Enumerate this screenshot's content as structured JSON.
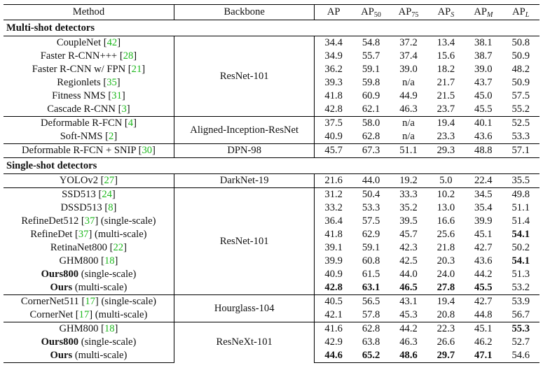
{
  "headers": {
    "method": "Method",
    "backbone": "Backbone",
    "metrics": [
      {
        "base": "AP",
        "sub": ""
      },
      {
        "base": "AP",
        "sub": "50"
      },
      {
        "base": "AP",
        "sub": "75"
      },
      {
        "base": "AP",
        "sub": "S"
      },
      {
        "base": "AP",
        "sub": "M"
      },
      {
        "base": "AP",
        "sub": "L"
      }
    ]
  },
  "sections": [
    {
      "title": "Multi-shot detectors",
      "groups": [
        {
          "backbone": "ResNet-101",
          "rows": [
            {
              "name": "CoupleNet",
              "ref": "42",
              "suffix": "",
              "bold_name": false,
              "values": [
                "34.4",
                "54.8",
                "37.2",
                "13.4",
                "38.1",
                "50.8"
              ],
              "bold": [
                false,
                false,
                false,
                false,
                false,
                false
              ]
            },
            {
              "name": "Faster R-CNN+++",
              "ref": "28",
              "suffix": "",
              "bold_name": false,
              "values": [
                "34.9",
                "55.7",
                "37.4",
                "15.6",
                "38.7",
                "50.9"
              ],
              "bold": [
                false,
                false,
                false,
                false,
                false,
                false
              ]
            },
            {
              "name": "Faster R-CNN w/ FPN",
              "ref": "21",
              "suffix": "",
              "bold_name": false,
              "values": [
                "36.2",
                "59.1",
                "39.0",
                "18.2",
                "39.0",
                "48.2"
              ],
              "bold": [
                false,
                false,
                false,
                false,
                false,
                false
              ]
            },
            {
              "name": "Regionlets",
              "ref": "35",
              "suffix": "",
              "bold_name": false,
              "values": [
                "39.3",
                "59.8",
                "n/a",
                "21.7",
                "43.7",
                "50.9"
              ],
              "bold": [
                false,
                false,
                false,
                false,
                false,
                false
              ]
            },
            {
              "name": "Fitness NMS",
              "ref": "31",
              "suffix": "",
              "bold_name": false,
              "values": [
                "41.8",
                "60.9",
                "44.9",
                "21.5",
                "45.0",
                "57.5"
              ],
              "bold": [
                false,
                false,
                false,
                false,
                false,
                false
              ]
            },
            {
              "name": "Cascade R-CNN",
              "ref": "3",
              "suffix": "",
              "bold_name": false,
              "values": [
                "42.8",
                "62.1",
                "46.3",
                "23.7",
                "45.5",
                "55.2"
              ],
              "bold": [
                false,
                false,
                false,
                false,
                false,
                false
              ]
            }
          ]
        },
        {
          "backbone": "Aligned-Inception-ResNet",
          "rows": [
            {
              "name": "Deformable R-FCN",
              "ref": "4",
              "suffix": "",
              "bold_name": false,
              "values": [
                "37.5",
                "58.0",
                "n/a",
                "19.4",
                "40.1",
                "52.5"
              ],
              "bold": [
                false,
                false,
                false,
                false,
                false,
                false
              ]
            },
            {
              "name": "Soft-NMS",
              "ref": "2",
              "suffix": "",
              "bold_name": false,
              "values": [
                "40.9",
                "62.8",
                "n/a",
                "23.3",
                "43.6",
                "53.3"
              ],
              "bold": [
                false,
                false,
                false,
                false,
                false,
                false
              ]
            }
          ]
        },
        {
          "backbone": "DPN-98",
          "rows": [
            {
              "name": "Deformable R-FCN + SNIP",
              "ref": "30",
              "suffix": "",
              "bold_name": false,
              "values": [
                "45.7",
                "67.3",
                "51.1",
                "29.3",
                "48.8",
                "57.1"
              ],
              "bold": [
                false,
                false,
                false,
                false,
                false,
                false
              ]
            }
          ]
        }
      ]
    },
    {
      "title": "Single-shot detectors",
      "groups": [
        {
          "backbone": "DarkNet-19",
          "rows": [
            {
              "name": "YOLOv2",
              "ref": "27",
              "suffix": "",
              "bold_name": false,
              "values": [
                "21.6",
                "44.0",
                "19.2",
                "5.0",
                "22.4",
                "35.5"
              ],
              "bold": [
                false,
                false,
                false,
                false,
                false,
                false
              ]
            }
          ]
        },
        {
          "backbone": "ResNet-101",
          "rows": [
            {
              "name": "SSD513",
              "ref": "24",
              "suffix": "",
              "bold_name": false,
              "values": [
                "31.2",
                "50.4",
                "33.3",
                "10.2",
                "34.5",
                "49.8"
              ],
              "bold": [
                false,
                false,
                false,
                false,
                false,
                false
              ]
            },
            {
              "name": "DSSD513",
              "ref": "8",
              "suffix": "",
              "bold_name": false,
              "values": [
                "33.2",
                "53.3",
                "35.2",
                "13.0",
                "35.4",
                "51.1"
              ],
              "bold": [
                false,
                false,
                false,
                false,
                false,
                false
              ]
            },
            {
              "name": "RefineDet512",
              "ref": "37",
              "suffix": "(single-scale)",
              "bold_name": false,
              "values": [
                "36.4",
                "57.5",
                "39.5",
                "16.6",
                "39.9",
                "51.4"
              ],
              "bold": [
                false,
                false,
                false,
                false,
                false,
                false
              ]
            },
            {
              "name": "RefineDet",
              "ref": "37",
              "suffix": "(multi-scale)",
              "bold_name": false,
              "values": [
                "41.8",
                "62.9",
                "45.7",
                "25.6",
                "45.1",
                "54.1"
              ],
              "bold": [
                false,
                false,
                false,
                false,
                false,
                true
              ]
            },
            {
              "name": "RetinaNet800",
              "ref": "22",
              "suffix": "",
              "bold_name": false,
              "values": [
                "39.1",
                "59.1",
                "42.3",
                "21.8",
                "42.7",
                "50.2"
              ],
              "bold": [
                false,
                false,
                false,
                false,
                false,
                false
              ]
            },
            {
              "name": "GHM800",
              "ref": "18",
              "suffix": "",
              "bold_name": false,
              "values": [
                "39.9",
                "60.8",
                "42.5",
                "20.3",
                "43.6",
                "54.1"
              ],
              "bold": [
                false,
                false,
                false,
                false,
                false,
                true
              ]
            },
            {
              "name": "Ours800",
              "ref": "",
              "suffix": "(single-scale)",
              "bold_name": true,
              "values": [
                "40.9",
                "61.5",
                "44.0",
                "24.0",
                "44.2",
                "51.3"
              ],
              "bold": [
                false,
                false,
                false,
                false,
                false,
                false
              ]
            },
            {
              "name": "Ours",
              "ref": "",
              "suffix": "(multi-scale)",
              "bold_name": true,
              "values": [
                "42.8",
                "63.1",
                "46.5",
                "27.8",
                "45.5",
                "53.2"
              ],
              "bold": [
                true,
                true,
                true,
                true,
                true,
                false
              ]
            }
          ]
        },
        {
          "backbone": "Hourglass-104",
          "rows": [
            {
              "name": "CornerNet511",
              "ref": "17",
              "suffix": "(single-scale)",
              "bold_name": false,
              "values": [
                "40.5",
                "56.5",
                "43.1",
                "19.4",
                "42.7",
                "53.9"
              ],
              "bold": [
                false,
                false,
                false,
                false,
                false,
                false
              ]
            },
            {
              "name": "CornerNet",
              "ref": "17",
              "suffix": "(multi-scale)",
              "bold_name": false,
              "values": [
                "42.1",
                "57.8",
                "45.3",
                "20.8",
                "44.8",
                "56.7"
              ],
              "bold": [
                false,
                false,
                false,
                false,
                false,
                false
              ]
            }
          ]
        },
        {
          "backbone": "ResNeXt-101",
          "rows": [
            {
              "name": "GHM800",
              "ref": "18",
              "suffix": "",
              "bold_name": false,
              "values": [
                "41.6",
                "62.8",
                "44.2",
                "22.3",
                "45.1",
                "55.3"
              ],
              "bold": [
                false,
                false,
                false,
                false,
                false,
                true
              ]
            },
            {
              "name": "Ours800",
              "ref": "",
              "suffix": "(single-scale)",
              "bold_name": true,
              "values": [
                "42.9",
                "63.8",
                "46.3",
                "26.6",
                "46.2",
                "52.7"
              ],
              "bold": [
                false,
                false,
                false,
                false,
                false,
                false
              ]
            },
            {
              "name": "Ours",
              "ref": "",
              "suffix": "(multi-scale)",
              "bold_name": true,
              "values": [
                "44.6",
                "65.2",
                "48.6",
                "29.7",
                "47.1",
                "54.6"
              ],
              "bold": [
                true,
                true,
                true,
                true,
                true,
                false
              ]
            }
          ]
        }
      ]
    }
  ]
}
